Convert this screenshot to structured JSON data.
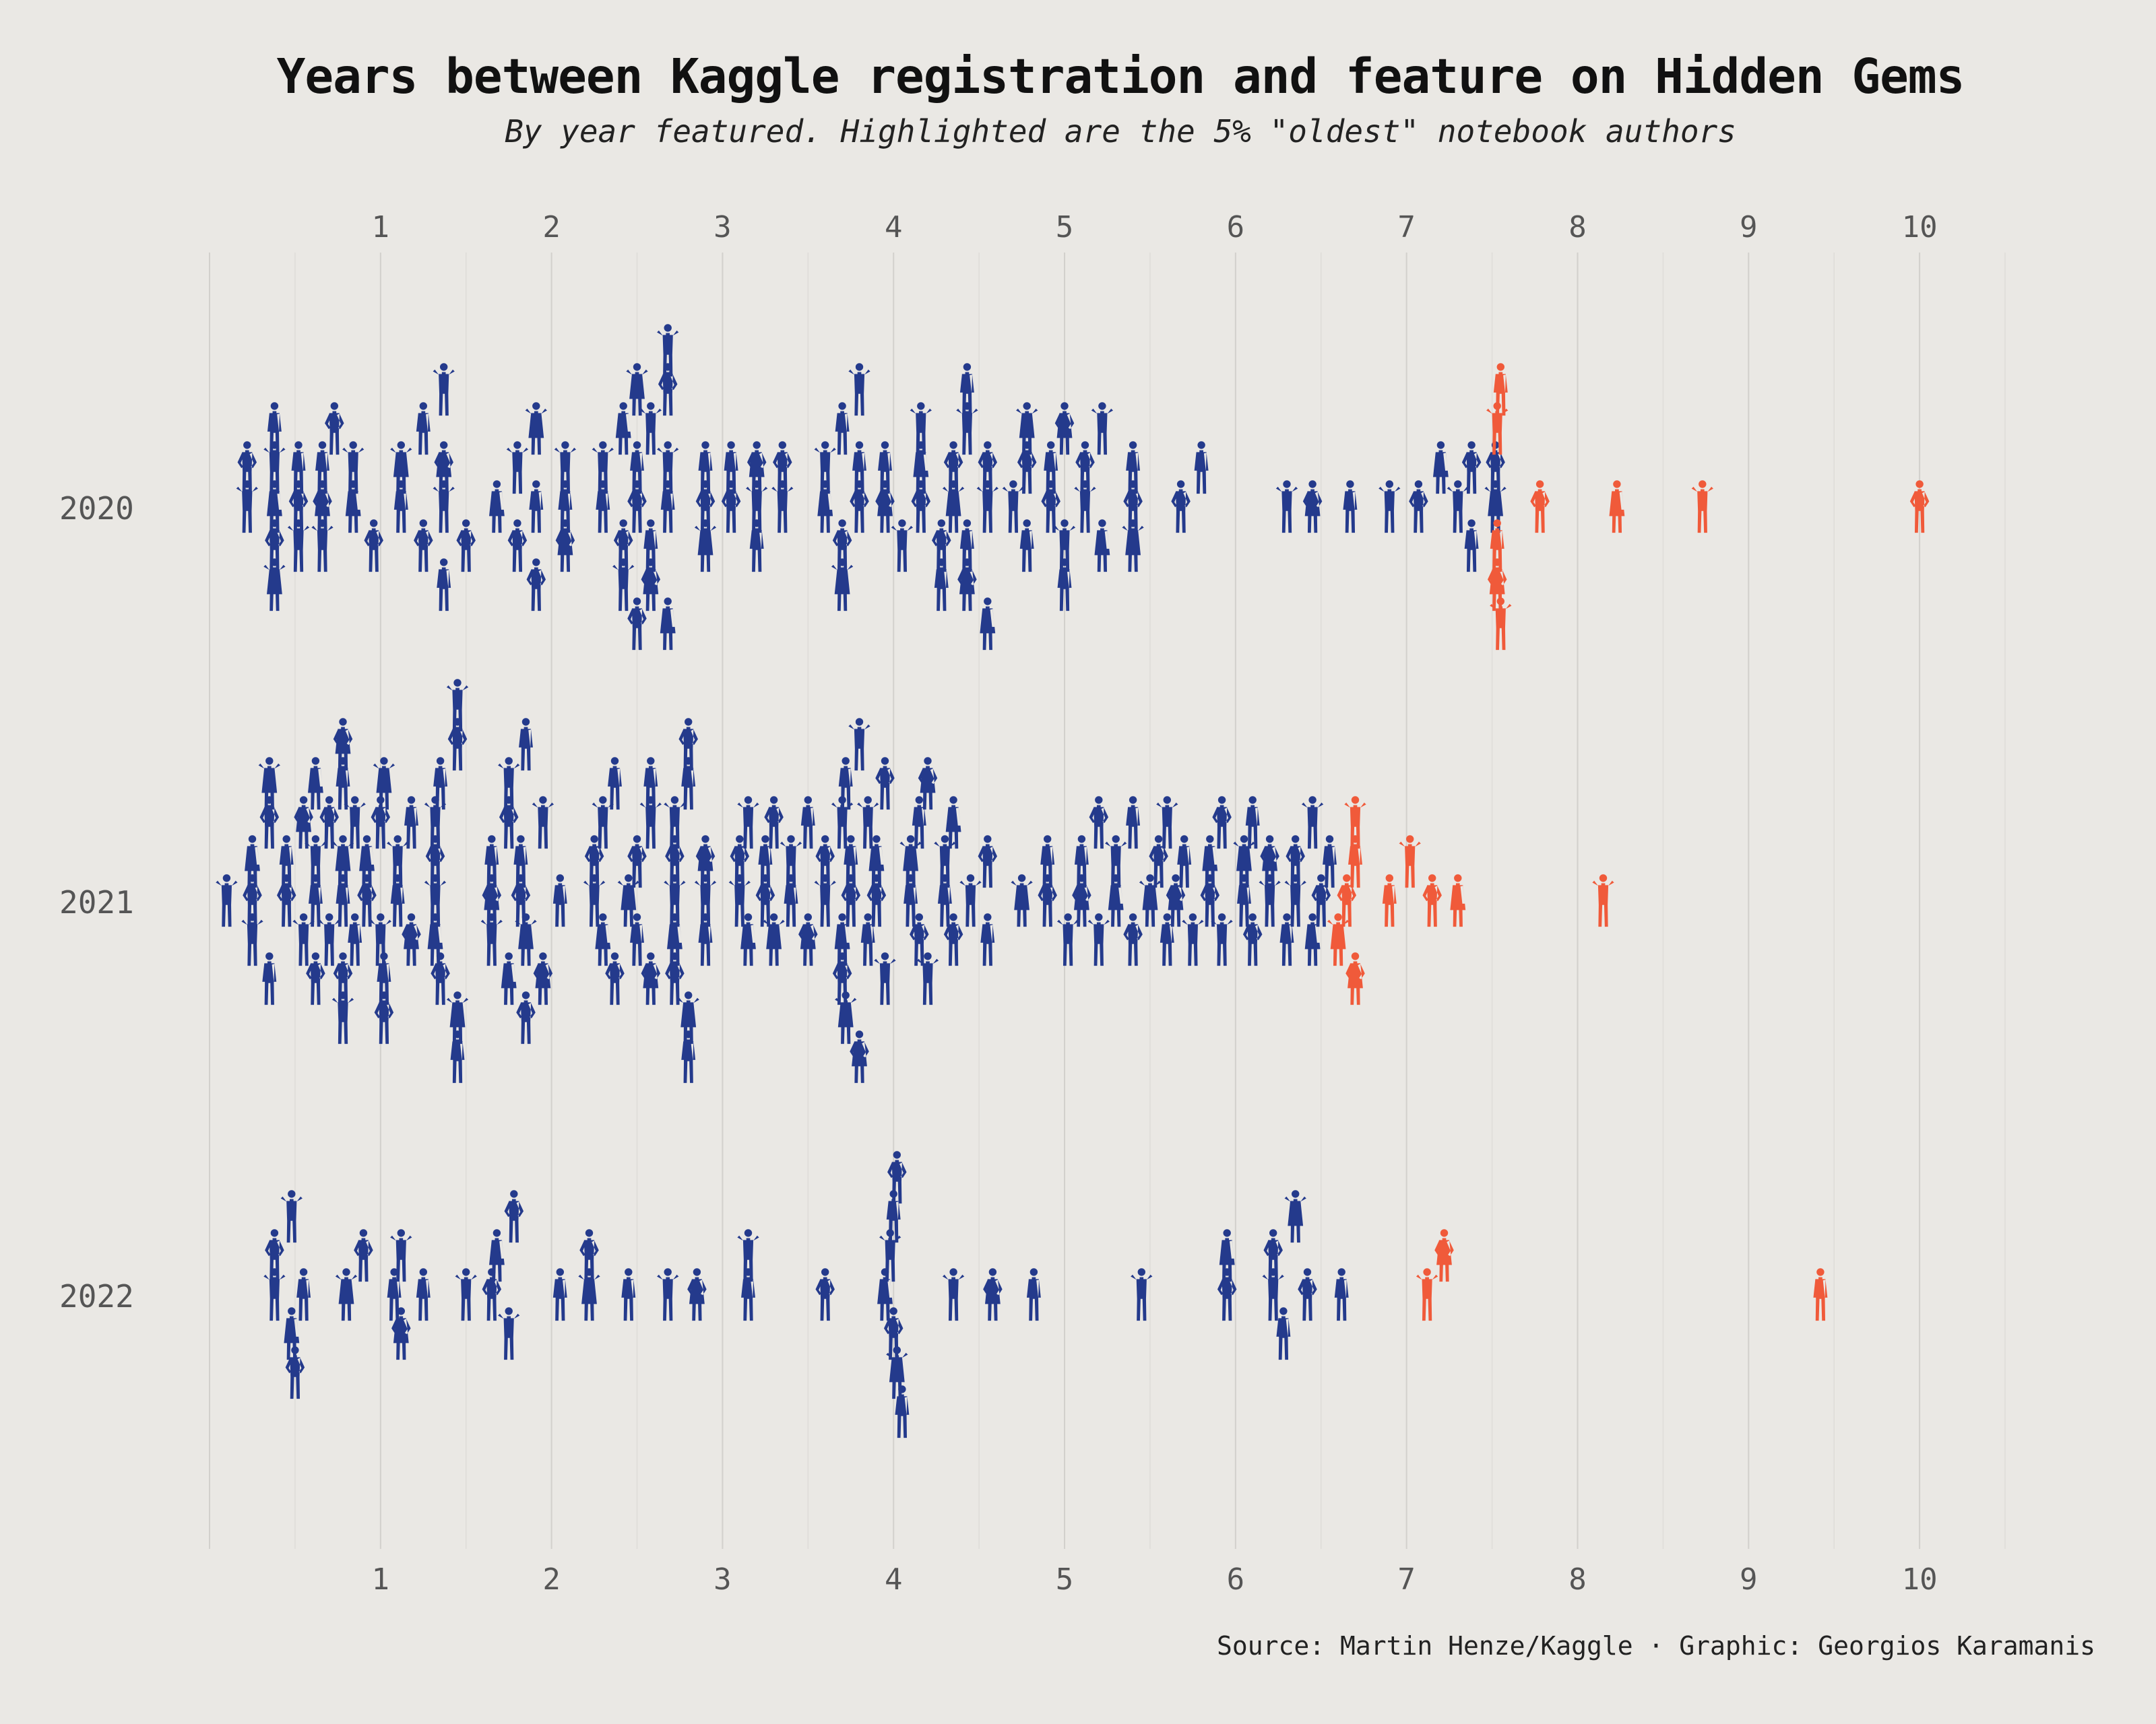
{
  "chart_data": {
    "type": "scatter",
    "title": "Years between Kaggle registration and feature on Hidden Gems",
    "subtitle": "By year featured. Highlighted are the 5% \"oldest\" notebook authors",
    "source": "Source: Martin Henze/Kaggle · Graphic: Georgios Karamanis",
    "xlabel": "",
    "ylabel": "",
    "xlim": [
      0,
      10.5
    ],
    "x_ticks": [
      "1",
      "2",
      "3",
      "4",
      "5",
      "6",
      "7",
      "8",
      "9",
      "10"
    ],
    "categories": [
      "2020",
      "2021",
      "2022"
    ],
    "colors": {
      "regular": "#243A8C",
      "highlight": "#F05A3A"
    },
    "series": [
      {
        "name": "2020",
        "regular": [
          0.22,
          0.22,
          0.38,
          0.38,
          0.38,
          0.38,
          0.38,
          0.52,
          0.52,
          0.52,
          0.66,
          0.66,
          0.66,
          0.73,
          0.84,
          0.84,
          0.96,
          1.12,
          1.12,
          1.25,
          1.25,
          1.37,
          1.37,
          1.37,
          1.37,
          1.5,
          1.68,
          1.8,
          1.8,
          1.91,
          1.91,
          1.91,
          2.08,
          2.08,
          2.08,
          2.3,
          2.3,
          2.42,
          2.42,
          2.42,
          2.5,
          2.5,
          2.5,
          2.5,
          2.58,
          2.58,
          2.58,
          2.68,
          2.68,
          2.68,
          2.68,
          2.68,
          2.9,
          2.9,
          2.9,
          3.05,
          3.05,
          3.2,
          3.2,
          3.2,
          3.35,
          3.35,
          3.6,
          3.6,
          3.7,
          3.7,
          3.7,
          3.8,
          3.8,
          3.8,
          3.95,
          3.95,
          4.05,
          4.16,
          4.16,
          4.16,
          4.28,
          4.28,
          4.35,
          4.35,
          4.43,
          4.43,
          4.43,
          4.43,
          4.55,
          4.55,
          4.55,
          4.7,
          4.78,
          4.78,
          4.78,
          4.92,
          4.92,
          5.0,
          5.0,
          5.0,
          5.12,
          5.12,
          5.22,
          5.22,
          5.4,
          5.4,
          5.4,
          5.68,
          5.8,
          6.3,
          6.45,
          6.67,
          6.9,
          7.07,
          7.2,
          7.3,
          7.38,
          7.38,
          7.52,
          7.52
        ],
        "highlight": [
          7.53,
          7.53,
          7.53,
          7.55,
          7.55,
          7.78,
          8.23,
          8.73,
          10.0
        ]
      },
      {
        "name": "2021",
        "regular": [
          0.1,
          0.25,
          0.25,
          0.25,
          0.35,
          0.35,
          0.35,
          0.45,
          0.45,
          0.55,
          0.55,
          0.62,
          0.62,
          0.62,
          0.62,
          0.7,
          0.7,
          0.78,
          0.78,
          0.78,
          0.78,
          0.78,
          0.78,
          0.85,
          0.85,
          0.92,
          0.92,
          1.0,
          1.0,
          1.02,
          1.02,
          1.02,
          1.1,
          1.1,
          1.18,
          1.18,
          1.32,
          1.32,
          1.32,
          1.32,
          1.35,
          1.35,
          1.45,
          1.45,
          1.45,
          1.45,
          1.65,
          1.65,
          1.65,
          1.75,
          1.75,
          1.75,
          1.82,
          1.82,
          1.85,
          1.85,
          1.85,
          1.95,
          1.95,
          2.05,
          2.25,
          2.25,
          2.3,
          2.3,
          2.37,
          2.37,
          2.45,
          2.5,
          2.5,
          2.58,
          2.58,
          2.58,
          2.72,
          2.72,
          2.72,
          2.72,
          2.72,
          2.8,
          2.8,
          2.8,
          2.8,
          2.9,
          2.9,
          2.9,
          3.1,
          3.1,
          3.15,
          3.15,
          3.25,
          3.25,
          3.3,
          3.3,
          3.4,
          3.4,
          3.5,
          3.5,
          3.6,
          3.6,
          3.7,
          3.7,
          3.7,
          3.72,
          3.72,
          3.75,
          3.75,
          3.8,
          3.8,
          3.85,
          3.85,
          3.9,
          3.9,
          3.95,
          3.95,
          4.1,
          4.1,
          4.15,
          4.15,
          4.2,
          4.2,
          4.3,
          4.3,
          4.35,
          4.35,
          4.45,
          4.55,
          4.55,
          4.75,
          4.9,
          4.9,
          5.02,
          5.1,
          5.1,
          5.2,
          5.2,
          5.3,
          5.3,
          5.4,
          5.4,
          5.5,
          5.55,
          5.6,
          5.6,
          5.65,
          5.7,
          5.75,
          5.85,
          5.85,
          5.92,
          5.92,
          6.05,
          6.05,
          6.1,
          6.1,
          6.2,
          6.2,
          6.3,
          6.35,
          6.35,
          6.45,
          6.45,
          6.5,
          6.55
        ],
        "highlight": [
          6.6,
          6.65,
          6.7,
          6.7,
          6.7,
          6.9,
          7.02,
          7.15,
          7.3,
          8.15
        ]
      },
      {
        "name": "2022",
        "regular": [
          0.38,
          0.38,
          0.48,
          0.48,
          0.5,
          0.55,
          0.8,
          0.9,
          1.08,
          1.12,
          1.12,
          1.25,
          1.5,
          1.65,
          1.68,
          1.75,
          1.78,
          2.05,
          2.22,
          2.22,
          2.45,
          2.68,
          2.85,
          3.15,
          3.15,
          3.6,
          3.95,
          3.98,
          4.0,
          4.0,
          4.02,
          4.02,
          4.05,
          4.35,
          4.58,
          4.82,
          5.45,
          5.95,
          5.95,
          6.22,
          6.22,
          6.28,
          6.35,
          6.42,
          6.62
        ],
        "highlight": [
          7.12,
          7.22,
          9.42
        ]
      }
    ]
  }
}
